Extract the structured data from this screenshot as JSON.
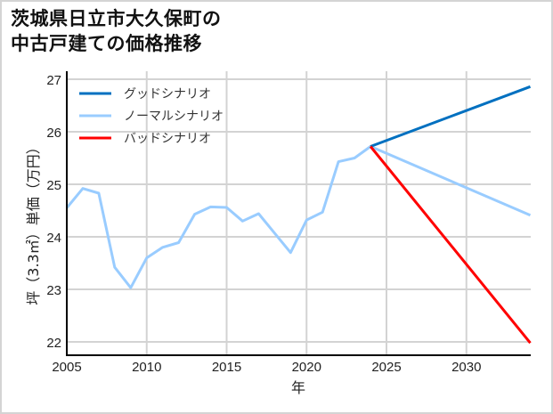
{
  "title_line1": "茨城県日立市大久保町の",
  "title_line2": "中古戸建ての価格推移",
  "chart_data": {
    "type": "line",
    "title": "茨城県日立市大久保町の中古戸建ての価格推移",
    "xlabel": "年",
    "ylabel": "坪（3.3㎡）単価（万円）",
    "xlim": [
      2005,
      2034
    ],
    "ylim": [
      21.75,
      27.05
    ],
    "x_ticks": [
      "2005",
      "2010",
      "2015",
      "2020",
      "2025",
      "2030"
    ],
    "y_ticks": [
      "22",
      "23",
      "24",
      "25",
      "26",
      "27"
    ],
    "grid": true,
    "legend_position": "upper left",
    "series": [
      {
        "name": "グッドシナリオ",
        "color": "#0070c0",
        "x": [
          2024,
          2034
        ],
        "values": [
          25.72,
          26.86
        ]
      },
      {
        "name": "ノーマルシナリオ",
        "color": "#99ccff",
        "x": [
          2005,
          2006,
          2007,
          2008,
          2009,
          2010,
          2011,
          2012,
          2013,
          2014,
          2015,
          2016,
          2017,
          2018,
          2019,
          2020,
          2021,
          2022,
          2023,
          2024,
          2034
        ],
        "values": [
          24.55,
          24.92,
          24.83,
          23.42,
          23.03,
          23.6,
          23.8,
          23.89,
          24.43,
          24.57,
          24.56,
          24.3,
          24.44,
          24.07,
          23.7,
          24.32,
          24.47,
          25.43,
          25.5,
          25.72,
          24.41
        ]
      },
      {
        "name": "バッドシナリオ",
        "color": "#ff0000",
        "x": [
          2024,
          2034
        ],
        "values": [
          25.72,
          21.98
        ]
      }
    ]
  }
}
